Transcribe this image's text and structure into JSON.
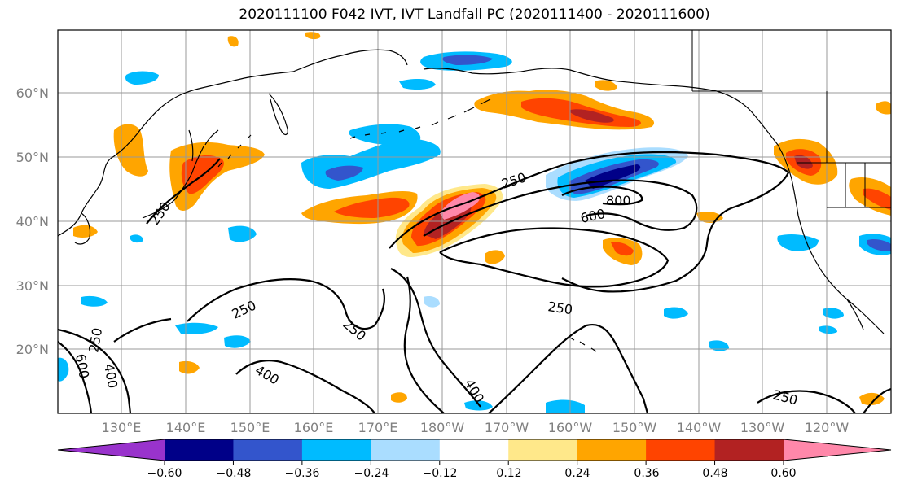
{
  "title": "2020111100 F042 IVT, IVT Landfall PC (2020111400 - 2020111600)",
  "map": {
    "lat_ticks": [
      "60°N",
      "50°N",
      "40°N",
      "30°N",
      "20°N"
    ],
    "lon_ticks": [
      "130°E",
      "140°E",
      "150°E",
      "160°E",
      "170°E",
      "180°W",
      "170°W",
      "160°W",
      "150°W",
      "140°W",
      "130°W",
      "120°W"
    ],
    "contour_labels": [
      "250",
      "250",
      "800",
      "600",
      "250",
      "250",
      "250",
      "250",
      "400",
      "400",
      "600",
      "400",
      "250"
    ],
    "fill_colors": {
      "neg_060": "#9933cc",
      "neg_048": "#000088",
      "neg_036": "#3355cc",
      "neg_024": "#00bbff",
      "neg_012": "#aaddff",
      "zero": "#ffffff",
      "pos_012": "#ffe88a",
      "pos_024": "#ffa500",
      "pos_036": "#ff4400",
      "pos_048": "#b22222",
      "pos_060": "#ff88aa"
    }
  },
  "colorbar": {
    "tick_labels": [
      "−0.60",
      "−0.48",
      "−0.36",
      "−0.24",
      "−0.12",
      "0.12",
      "0.24",
      "0.36",
      "0.48",
      "0.60"
    ],
    "colors": [
      "#9933cc",
      "#000088",
      "#3355cc",
      "#00bbff",
      "#aaddff",
      "#ffffff",
      "#ffe88a",
      "#ffa500",
      "#ff4400",
      "#b22222",
      "#ff88aa"
    ]
  }
}
